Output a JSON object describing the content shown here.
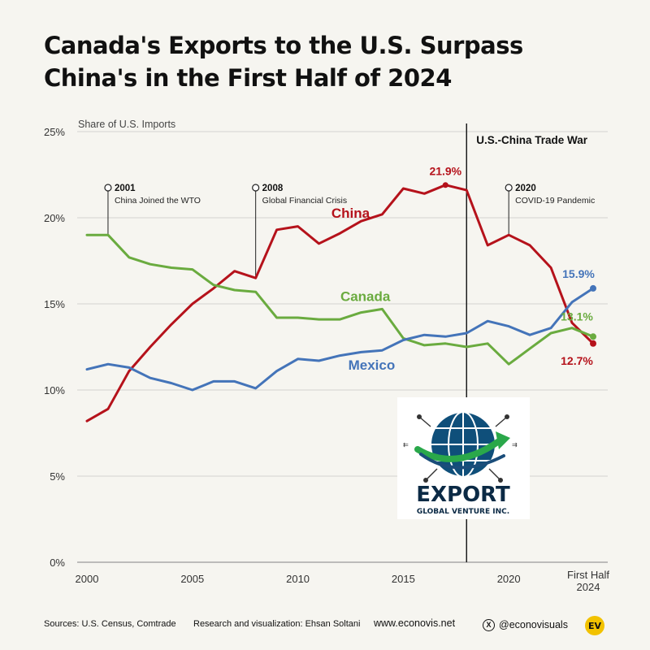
{
  "title": {
    "line1": "Canada's Exports to the U.S. Surpass",
    "line2": "China's in the First Half of 2024"
  },
  "chart_data": {
    "type": "line",
    "ylabel": "Share of U.S. Imports",
    "ylim": [
      0,
      25
    ],
    "y_ticks": [
      0,
      5,
      10,
      15,
      20,
      25
    ],
    "y_tick_labels": [
      "0%",
      "5%",
      "10%",
      "15%",
      "20%",
      "25%"
    ],
    "x_ticks": [
      2000,
      2005,
      2010,
      2015,
      2020
    ],
    "x_tick_labels": [
      "2000",
      "2005",
      "2010",
      "2015",
      "2020"
    ],
    "x_last_label_line1": "First Half",
    "x_last_label_line2": "2024",
    "x": [
      2000,
      2001,
      2002,
      2003,
      2004,
      2005,
      2006,
      2007,
      2008,
      2009,
      2010,
      2011,
      2012,
      2013,
      2014,
      2015,
      2016,
      2017,
      2018,
      2019,
      2020,
      2021,
      2022,
      2023,
      2024
    ],
    "series": [
      {
        "name": "China",
        "color": "#b5121b",
        "values": [
          8.2,
          8.9,
          11.1,
          12.5,
          13.8,
          15.0,
          15.9,
          16.9,
          16.5,
          19.3,
          19.5,
          18.5,
          19.1,
          19.8,
          20.2,
          21.7,
          21.4,
          21.9,
          21.6,
          18.4,
          19.0,
          18.4,
          17.1,
          13.9,
          12.7
        ],
        "end_label": "12.7%",
        "peak_label": "21.9%"
      },
      {
        "name": "Canada",
        "color": "#6aab3f",
        "values": [
          19.0,
          19.0,
          17.7,
          17.3,
          17.1,
          17.0,
          16.1,
          15.8,
          15.7,
          14.2,
          14.2,
          14.1,
          14.1,
          14.5,
          14.7,
          13.0,
          12.6,
          12.7,
          12.5,
          12.7,
          11.5,
          12.4,
          13.3,
          13.6,
          13.1
        ],
        "end_label": "13.1%"
      },
      {
        "name": "Mexico",
        "color": "#4474b9",
        "values": [
          11.2,
          11.5,
          11.3,
          10.7,
          10.4,
          10.0,
          10.5,
          10.5,
          10.1,
          11.1,
          11.8,
          11.7,
          12.0,
          12.2,
          12.3,
          12.9,
          13.2,
          13.1,
          13.3,
          14.0,
          13.7,
          13.2,
          13.6,
          15.1,
          15.9
        ],
        "end_label": "15.9%"
      }
    ],
    "annotations": [
      {
        "x": 2001,
        "year": "2001",
        "text": "China Joined the WTO"
      },
      {
        "x": 2008,
        "year": "2008",
        "text": "Global Financial Crisis"
      },
      {
        "x": 2020,
        "year": "2020",
        "text": "COVID-19 Pandemic"
      }
    ],
    "trade_war": {
      "x": 2018,
      "label": "U.S.-China Trade War"
    }
  },
  "footer": {
    "sources": "Sources: U.S. Census, Comtrade",
    "research": "Research and visualization: Ehsan Soltani",
    "website": "www.econovis.net",
    "handle": "@econovisuals",
    "x_icon": "X",
    "ev_logo": "EV"
  },
  "logo": {
    "name": "EXPORT",
    "sub": "GLOBAL VENTURE INC."
  }
}
